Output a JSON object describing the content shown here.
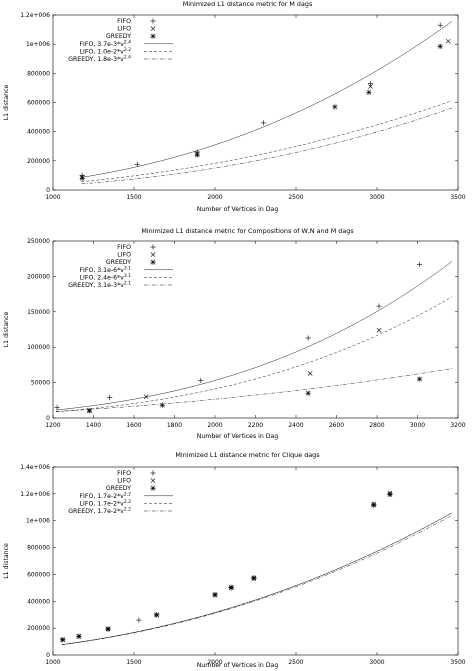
{
  "chart_data": [
    {
      "type": "scatter",
      "title": "Minimized L1 distance metric for M dags",
      "xlabel": "Number of Vertices in Dag",
      "ylabel": "L1 distance",
      "xlim": [
        1000,
        3500
      ],
      "ylim": [
        0,
        1200000
      ],
      "xticks": [
        1000,
        1500,
        2000,
        2500,
        3000,
        3500
      ],
      "yticks": [
        0,
        200000,
        400000,
        600000,
        800000,
        1000000,
        1200000
      ],
      "ytick_labels": [
        "0",
        "200000",
        "400000",
        "600000",
        "800000",
        "1e+006",
        "1.2e+006"
      ],
      "legend_position": "top-left",
      "series": [
        {
          "name": "FIFO",
          "kind": "points",
          "marker": "plus",
          "x": [
            1180,
            1520,
            1890,
            2300,
            2960,
            3390
          ],
          "y": [
            100000,
            175000,
            260000,
            460000,
            730000,
            1130000
          ]
        },
        {
          "name": "LIFO",
          "kind": "points",
          "marker": "cross",
          "x": [
            1180,
            1890,
            2960,
            3440
          ],
          "y": [
            90000,
            250000,
            710000,
            1020000
          ]
        },
        {
          "name": "GREEDY",
          "kind": "points",
          "marker": "star",
          "x": [
            1180,
            1890,
            2740,
            2950,
            3390
          ],
          "y": [
            80000,
            240000,
            570000,
            670000,
            985000
          ]
        }
      ],
      "fits": [
        {
          "name": "FIFO, 3.7e-3*v",
          "exp": "2.4",
          "coef": 0.0037,
          "power": 2.4,
          "dash": ""
        },
        {
          "name": "LIFO, 1.0e-2*v",
          "exp": "2.2",
          "coef": 0.01,
          "power": 2.2,
          "dash": "3,2"
        },
        {
          "name": "GREEDY, 1.8e-3*v",
          "exp": "2.4",
          "coef": 0.0018,
          "power": 2.4,
          "dash": "4,1.5,1,1.5"
        }
      ]
    },
    {
      "type": "scatter",
      "title": "Minimized L1 distance metric for Compositions of W,N and M dags",
      "xlabel": "Number of Vertices in Dag",
      "ylabel": "L1 distance",
      "xlim": [
        1200,
        3200
      ],
      "ylim": [
        0,
        250000
      ],
      "xticks": [
        1200,
        1400,
        1600,
        1800,
        2000,
        2200,
        2400,
        2600,
        2800,
        3000,
        3200
      ],
      "yticks": [
        0,
        50000,
        100000,
        150000,
        200000,
        250000
      ],
      "ytick_labels": [
        "0",
        "50000",
        "100000",
        "150000",
        "200000",
        "250000"
      ],
      "legend_position": "top-left",
      "series": [
        {
          "name": "FIFO",
          "kind": "points",
          "marker": "plus",
          "x": [
            1220,
            1480,
            1930,
            2460,
            2810,
            3010
          ],
          "y": [
            15000,
            29000,
            53000,
            113000,
            158000,
            217000
          ]
        },
        {
          "name": "LIFO",
          "kind": "points",
          "marker": "cross",
          "x": [
            1380,
            1660,
            2470,
            2810
          ],
          "y": [
            11000,
            30000,
            63000,
            124000
          ]
        },
        {
          "name": "GREEDY",
          "kind": "points",
          "marker": "star",
          "x": [
            1380,
            1740,
            2460,
            3010
          ],
          "y": [
            10000,
            18000,
            35000,
            55000
          ]
        }
      ],
      "fits": [
        {
          "name": "FIFO, 3.1e-6*v",
          "exp": "3.1",
          "coef": 3.1e-06,
          "power": 3.1,
          "dash": ""
        },
        {
          "name": "LIFO, 2.4e-6*v",
          "exp": "3.1",
          "coef": 2.4e-06,
          "power": 3.1,
          "dash": "3,2"
        },
        {
          "name": "GREEDY, 3.1e-3*v",
          "exp": "2.1",
          "coef": 0.0031,
          "power": 2.1,
          "dash": "4,1.5,1,1.5"
        }
      ]
    },
    {
      "type": "scatter",
      "title": "Minimized L1 distance metric for Clique dags",
      "xlabel": "Number of Vertices in Dag",
      "ylabel": "L1 distance",
      "xlim": [
        1000,
        3500
      ],
      "ylim": [
        0,
        1400000
      ],
      "xticks": [
        1000,
        1500,
        2000,
        2500,
        3000,
        3500
      ],
      "yticks": [
        0,
        200000,
        400000,
        600000,
        800000,
        1000000,
        1200000,
        1400000
      ],
      "ytick_labels": [
        "0",
        "200000",
        "400000",
        "600000",
        "800000",
        "1e+006",
        "1.2e+006",
        "1.4e+006"
      ],
      "legend_position": "top-left",
      "series": [
        {
          "name": "FIFO",
          "kind": "points",
          "marker": "plus",
          "x": [
            1060,
            1160,
            1340,
            1530,
            1640,
            2000,
            2100,
            2240,
            2980,
            3080
          ],
          "y": [
            115000,
            140000,
            195000,
            260000,
            300000,
            450000,
            505000,
            575000,
            1120000,
            1200000
          ]
        },
        {
          "name": "LIFO",
          "kind": "points",
          "marker": "cross",
          "x": [
            1060,
            1160,
            1340,
            1640,
            2000,
            2100,
            2240,
            2980,
            3080
          ],
          "y": [
            115000,
            140000,
            195000,
            300000,
            450000,
            505000,
            575000,
            1125000,
            1205000
          ]
        },
        {
          "name": "GREEDY",
          "kind": "points",
          "marker": "star",
          "x": [
            1060,
            1160,
            1340,
            1640,
            2000,
            2100,
            2240,
            2980,
            3080
          ],
          "y": [
            112000,
            138000,
            192000,
            297000,
            447000,
            500000,
            570000,
            1115000,
            1195000
          ]
        }
      ],
      "fits": [
        {
          "name": "FIFO, 1.7e-2*v",
          "exp": "2.2",
          "coef": 0.0173,
          "power": 2.2,
          "dash": ""
        },
        {
          "name": "LIFO, 1.7e-2*v",
          "exp": "2.2",
          "coef": 0.0173,
          "power": 2.2,
          "dash": "3,2"
        },
        {
          "name": "GREEDY, 1.7e-2*v",
          "exp": "2.2",
          "coef": 0.017,
          "power": 2.2,
          "dash": "4,1.5,1,1.5"
        }
      ]
    }
  ]
}
